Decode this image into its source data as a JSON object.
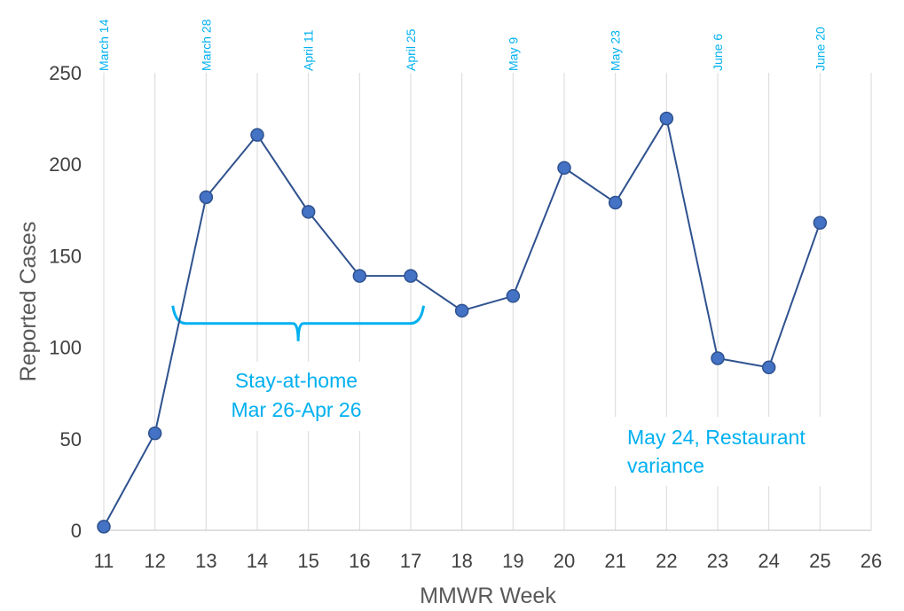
{
  "chart_data": {
    "type": "line",
    "xlabel": "MMWR Week",
    "ylabel": "Reported Cases",
    "xlim": [
      11,
      26
    ],
    "ylim": [
      0,
      250
    ],
    "x_ticks": [
      11,
      12,
      13,
      14,
      15,
      16,
      17,
      18,
      19,
      20,
      21,
      22,
      23,
      24,
      25,
      26
    ],
    "y_ticks": [
      0,
      50,
      100,
      150,
      200,
      250
    ],
    "grid": "vertical",
    "series": [
      {
        "x": [
          11,
          12,
          13,
          14,
          15,
          16,
          17,
          18,
          19,
          20,
          21,
          22,
          23,
          24,
          25
        ],
        "y": [
          2,
          53,
          182,
          216,
          174,
          139,
          139,
          120,
          128,
          198,
          179,
          225,
          94,
          89,
          168
        ]
      }
    ],
    "date_labels": [
      {
        "week": 11,
        "text": "March 14"
      },
      {
        "week": 13,
        "text": "March 28"
      },
      {
        "week": 15,
        "text": "April 11"
      },
      {
        "week": 17,
        "text": "April 25"
      },
      {
        "week": 19,
        "text": "May 9"
      },
      {
        "week": 21,
        "text": "May 23"
      },
      {
        "week": 23,
        "text": "June 6"
      },
      {
        "week": 25,
        "text": "June 20"
      }
    ],
    "annotations": {
      "stay_at_home": {
        "line1": "Stay-at-home",
        "line2": "Mar 26-Apr 26",
        "bracket_from_week": 12.4,
        "bracket_to_week": 17.2
      },
      "restaurant": {
        "line1": "May 24, Restaurant",
        "line2": "variance"
      }
    },
    "colors": {
      "line": "#2F528F",
      "marker_fill": "#4472C4",
      "annotation": "#00B0F0",
      "grid": "#D9D9D9"
    }
  }
}
